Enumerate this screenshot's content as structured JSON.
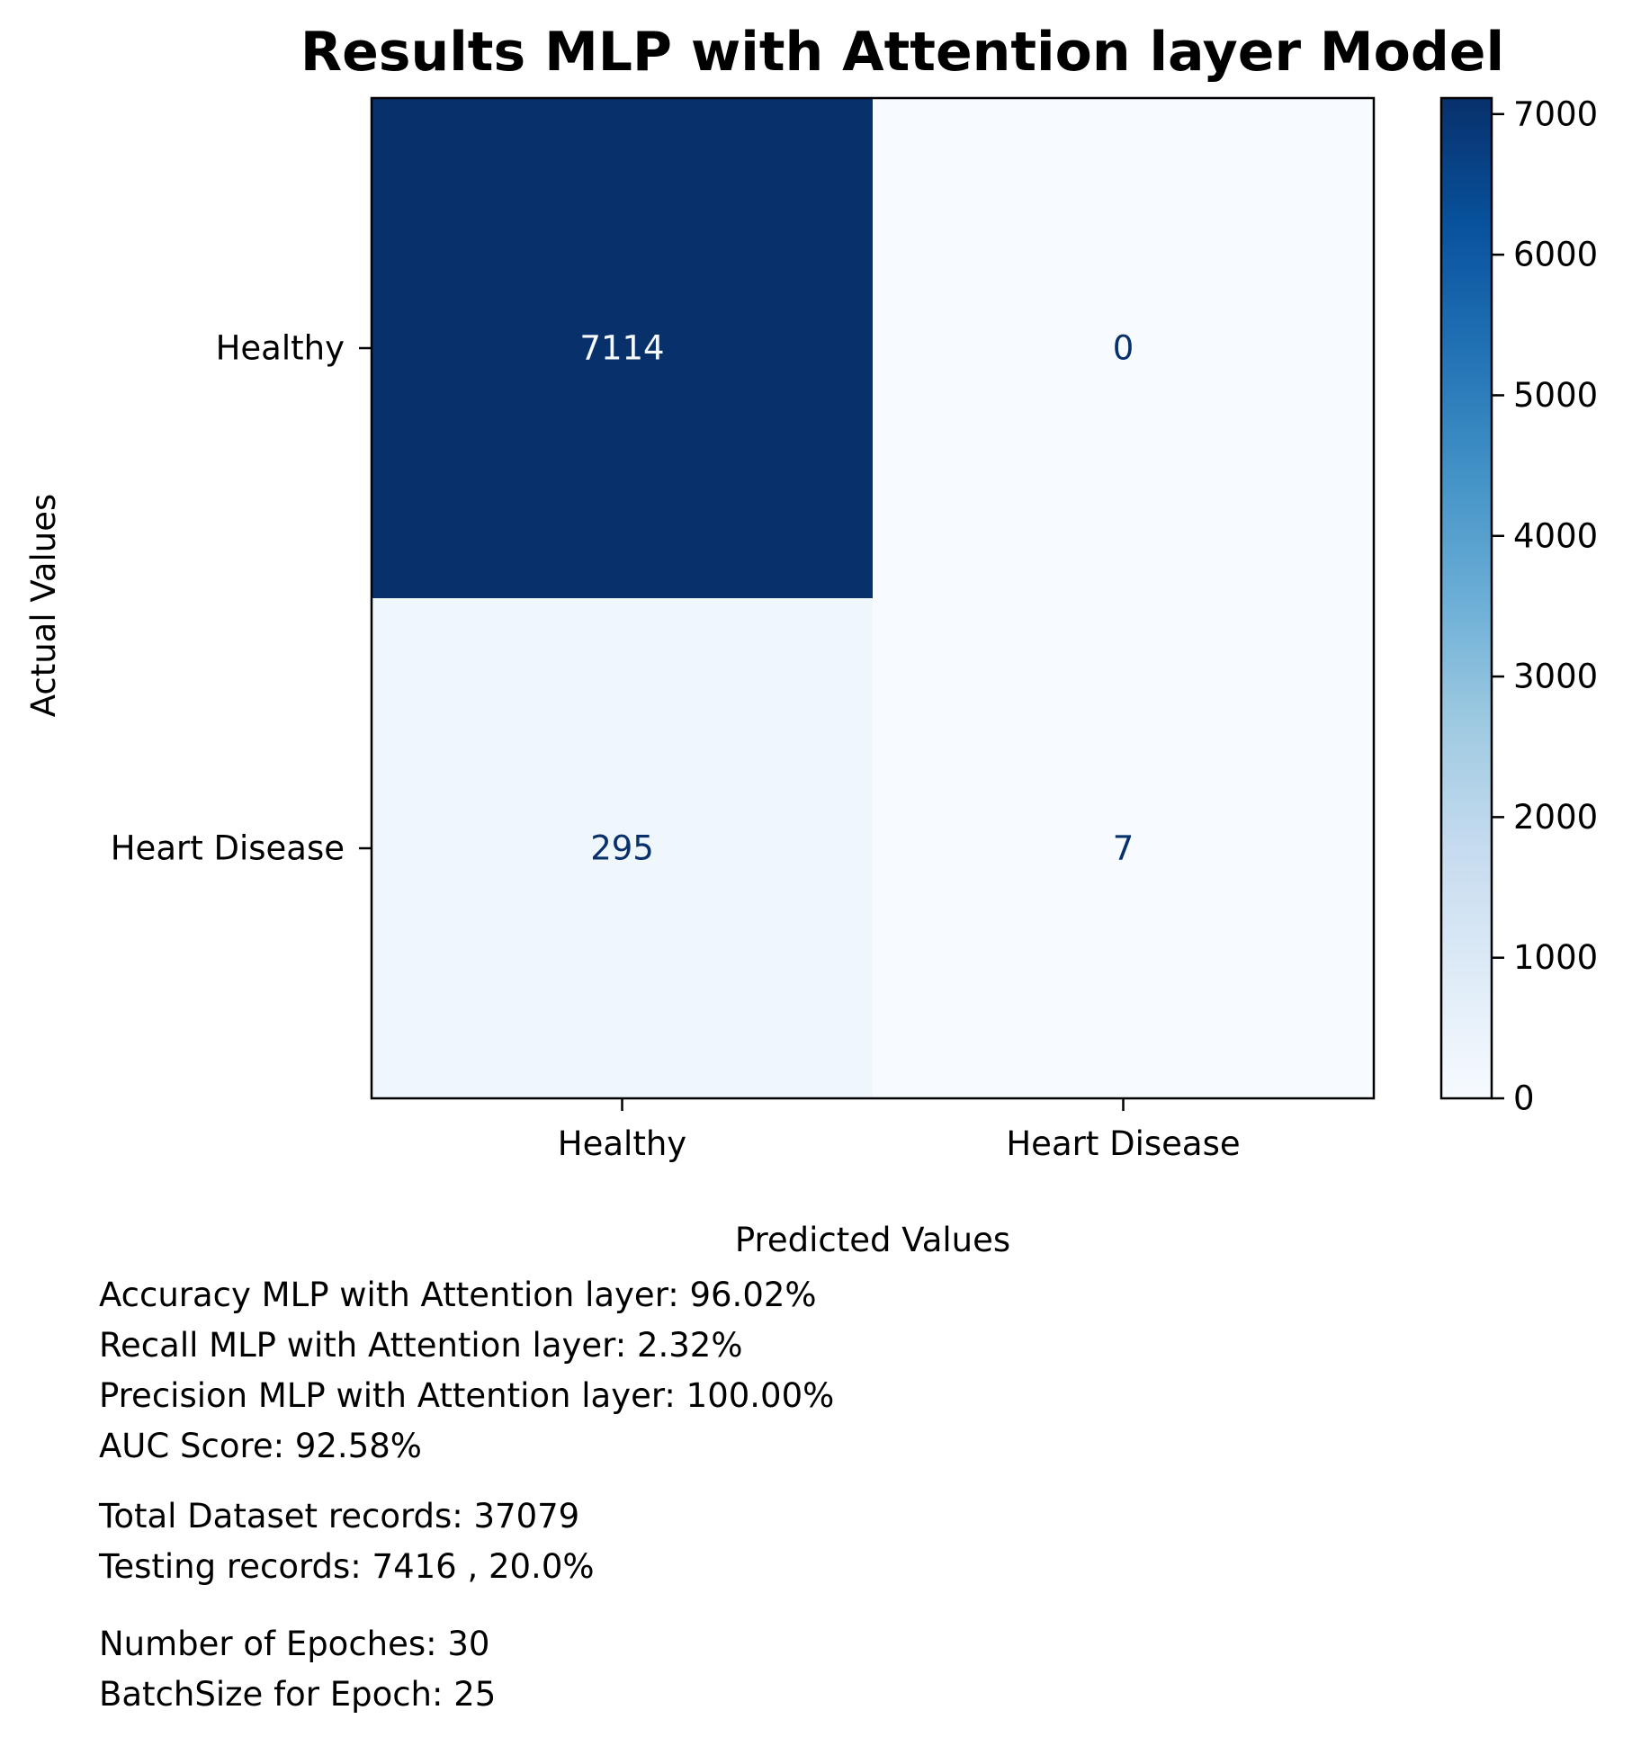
{
  "chart_data": {
    "type": "heatmap",
    "title": "Results MLP with Attention layer Model",
    "xlabel": "Predicted Values",
    "ylabel": "Actual Values",
    "x_categories": [
      "Healthy",
      "Heart Disease"
    ],
    "y_categories": [
      "Healthy",
      "Heart Disease"
    ],
    "matrix": [
      [
        7114,
        0
      ],
      [
        295,
        7
      ]
    ],
    "colormap": "Blues",
    "colorbar": {
      "ticks": [
        "0",
        "1000",
        "2000",
        "3000",
        "4000",
        "5000",
        "6000",
        "7000"
      ],
      "tick_values": [
        0,
        1000,
        2000,
        3000,
        4000,
        5000,
        6000,
        7000
      ],
      "range": [
        0,
        7114
      ]
    },
    "colors": {
      "cell_high": "#08306b",
      "cell_low": "#f7fbff",
      "cell_295": "#ebf3fb",
      "text_on_dark": "#f7fbff",
      "text_on_light": "#08306b"
    }
  },
  "metrics": {
    "accuracy": "Accuracy MLP with Attention layer: 96.02%",
    "recall": "Recall MLP with Attention layer: 2.32%",
    "precision": "Precision MLP with Attention layer: 100.00%",
    "auc": "AUC Score: 92.58%",
    "total_records": "Total Dataset records: 37079",
    "testing_records": "Testing records: 7416 , 20.0%",
    "epochs": "Number of Epoches: 30",
    "batch_size": "BatchSize for Epoch: 25"
  }
}
